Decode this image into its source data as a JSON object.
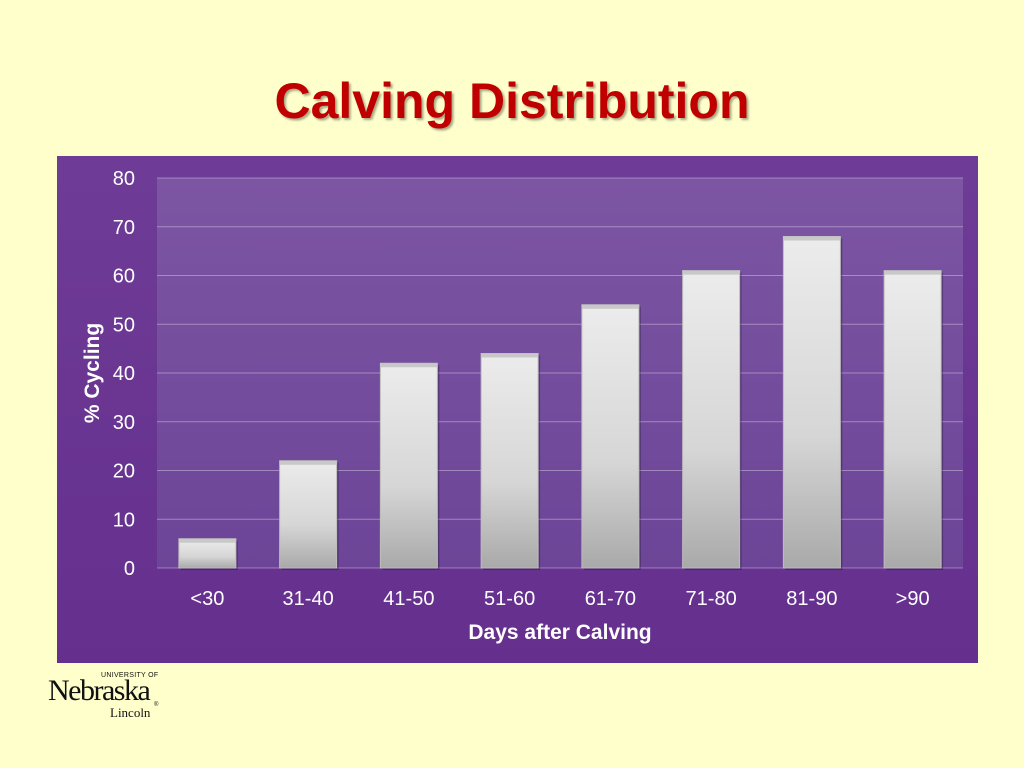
{
  "slide": {
    "title": "Calving Distribution"
  },
  "logo": {
    "university_line": "UNIVERSITY OF",
    "wordmark": "Nebraska",
    "campus": "Lincoln",
    "registered": "®"
  },
  "colors": {
    "background": "#ffffcc",
    "title": "#c00000",
    "plot_background": "#6b3a93",
    "bar_fill": "#e6e6e6"
  },
  "chart_data": {
    "type": "bar",
    "title": "",
    "xlabel": "Days after Calving",
    "ylabel": "% Cycling",
    "categories": [
      "<30",
      "31-40",
      "41-50",
      "51-60",
      "61-70",
      "71-80",
      "81-90",
      ">90"
    ],
    "values": [
      6,
      22,
      42,
      44,
      54,
      61,
      68,
      61
    ],
    "ylim": [
      0,
      80
    ],
    "yticks": [
      0,
      10,
      20,
      30,
      40,
      50,
      60,
      70,
      80
    ],
    "grid": true,
    "legend": "none"
  }
}
